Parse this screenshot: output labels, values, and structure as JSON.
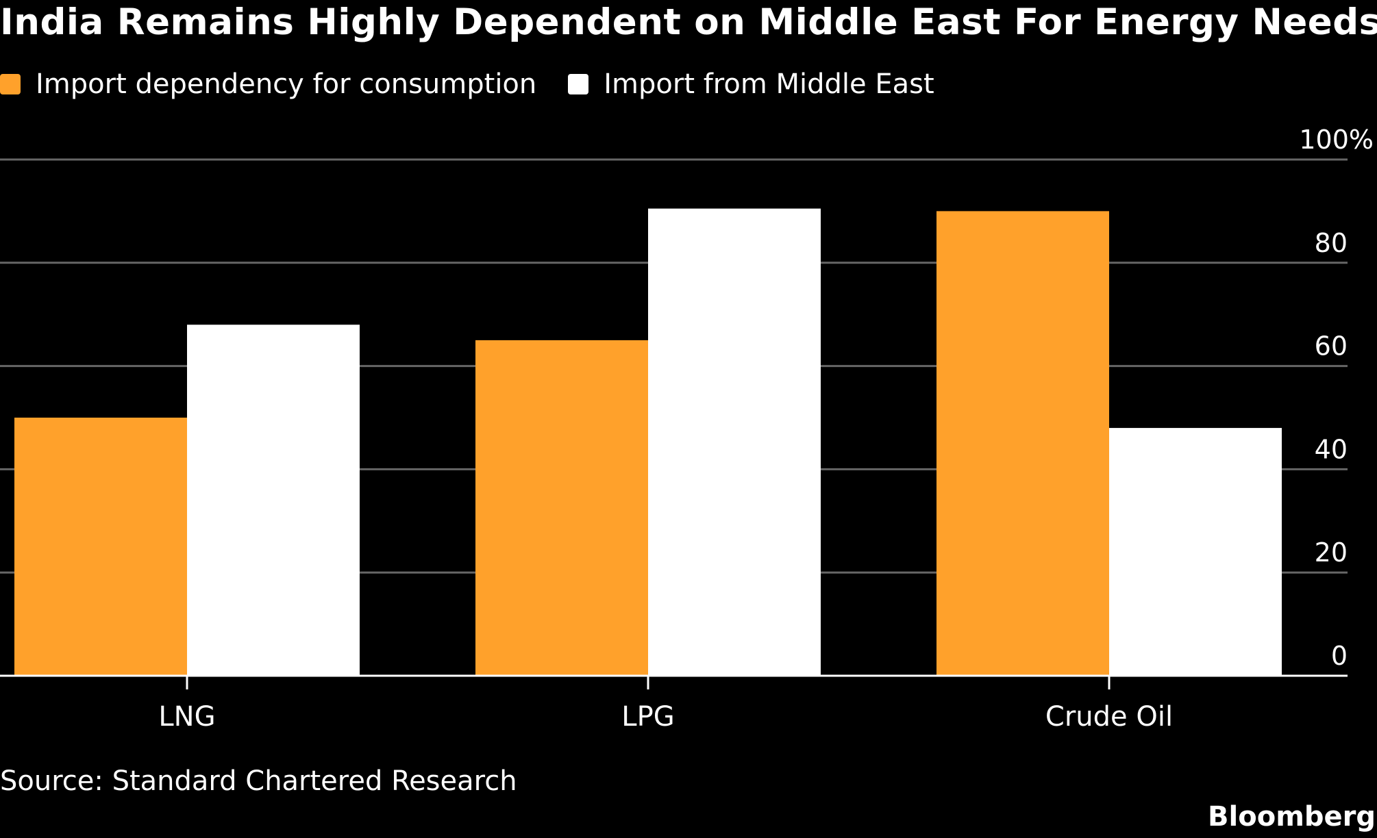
{
  "chart_data": {
    "type": "bar",
    "title": "India Remains Highly Dependent on Middle East For Energy Needs",
    "categories": [
      "LNG",
      "LPG",
      "Crude Oil"
    ],
    "series": [
      {
        "name": "Import dependency for consumption",
        "color": "#FFA12B",
        "values": [
          50,
          65,
          90
        ]
      },
      {
        "name": "Import from Middle East",
        "color": "#FFFFFF",
        "values": [
          68,
          90.5,
          48
        ]
      }
    ],
    "ylim": [
      0,
      100
    ],
    "yticks": [
      0,
      20,
      40,
      60,
      80,
      100
    ],
    "ytick_labels": [
      "0",
      "20",
      "40",
      "60",
      "80",
      "100%"
    ],
    "y_axis_side": "right",
    "grid": true,
    "legend": "top-left",
    "source": "Source: Standard Chartered Research",
    "brand": "Bloomberg"
  }
}
